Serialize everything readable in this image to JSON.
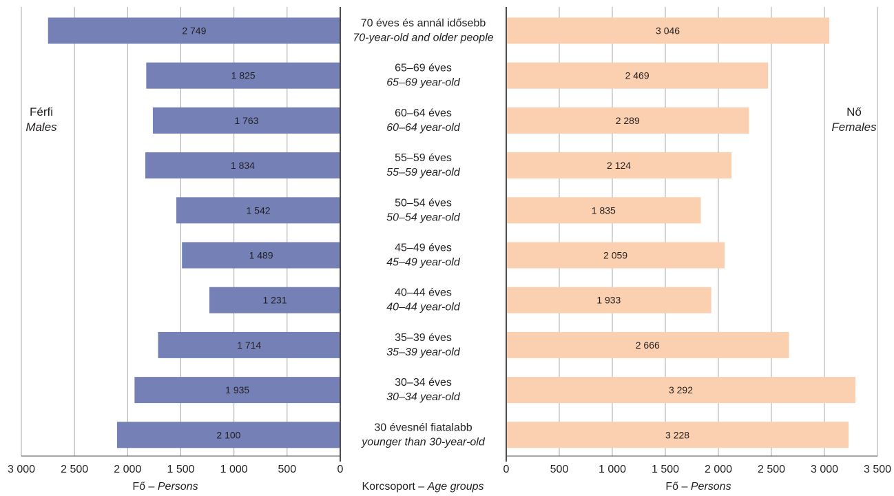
{
  "chart_data": {
    "type": "bar",
    "orientation": "horizontal-population-pyramid",
    "categories": [
      {
        "hu": "70 éves és annál idősebb",
        "en": "70-year-old and older people"
      },
      {
        "hu": "65–69 éves",
        "en": "65–69 year-old"
      },
      {
        "hu": "60–64 éves",
        "en": "60–64 year-old"
      },
      {
        "hu": "55–59 éves",
        "en": "55–59 year-old"
      },
      {
        "hu": "50–54 éves",
        "en": "50–54 year-old"
      },
      {
        "hu": "45–49 éves",
        "en": "45–49 year-old"
      },
      {
        "hu": "40–44 éves",
        "en": "40–44 year-old"
      },
      {
        "hu": "35–39 éves",
        "en": "35–39 year-old"
      },
      {
        "hu": "30–34 éves",
        "en": "30–34 year-old"
      },
      {
        "hu": "30 évesnél fiatalabb",
        "en": "younger than 30-year-old"
      }
    ],
    "series": [
      {
        "side": "left",
        "color": "#7480b6",
        "values": [
          2749,
          1825,
          1763,
          1834,
          1542,
          1489,
          1231,
          1714,
          1935,
          2100
        ],
        "value_labels": [
          "2 749",
          "1 825",
          "1 763",
          "1 834",
          "1 542",
          "1 489",
          "1 231",
          "1 714",
          "1 935",
          "2 100"
        ]
      },
      {
        "side": "right",
        "color": "#fbd0b0",
        "values": [
          3046,
          2469,
          2289,
          2124,
          1835,
          2059,
          1933,
          2666,
          3292,
          3228
        ],
        "value_labels": [
          "3 046",
          "2 469",
          "2 289",
          "2 124",
          "1 835",
          "2 059",
          "1 933",
          "2 666",
          "3 292",
          "3 228"
        ]
      }
    ],
    "side_labels": {
      "left": {
        "hu": "Férfi",
        "en": "Males"
      },
      "right": {
        "hu": "Nő",
        "en": "Females"
      }
    },
    "axis_left": {
      "ticks": [
        3000,
        2500,
        2000,
        1500,
        1000,
        500,
        0
      ],
      "tick_labels": [
        "3 000",
        "2 500",
        "2 000",
        "1 500",
        "1 000",
        "500",
        "0"
      ],
      "title_hu": "Fő –",
      "title_en": "Persons",
      "range": [
        0,
        3000
      ]
    },
    "axis_right": {
      "ticks": [
        0,
        500,
        1000,
        1500,
        2000,
        2500,
        3000,
        3500
      ],
      "tick_labels": [
        "0",
        "500",
        "1 000",
        "1 500",
        "2 000",
        "2 500",
        "3 000",
        "3 500"
      ],
      "title_hu": "Fő –",
      "title_en": "Persons",
      "range": [
        0,
        3500
      ]
    },
    "center_title": {
      "hu": "Korcsoport –",
      "en": "Age groups"
    },
    "grid": true
  }
}
